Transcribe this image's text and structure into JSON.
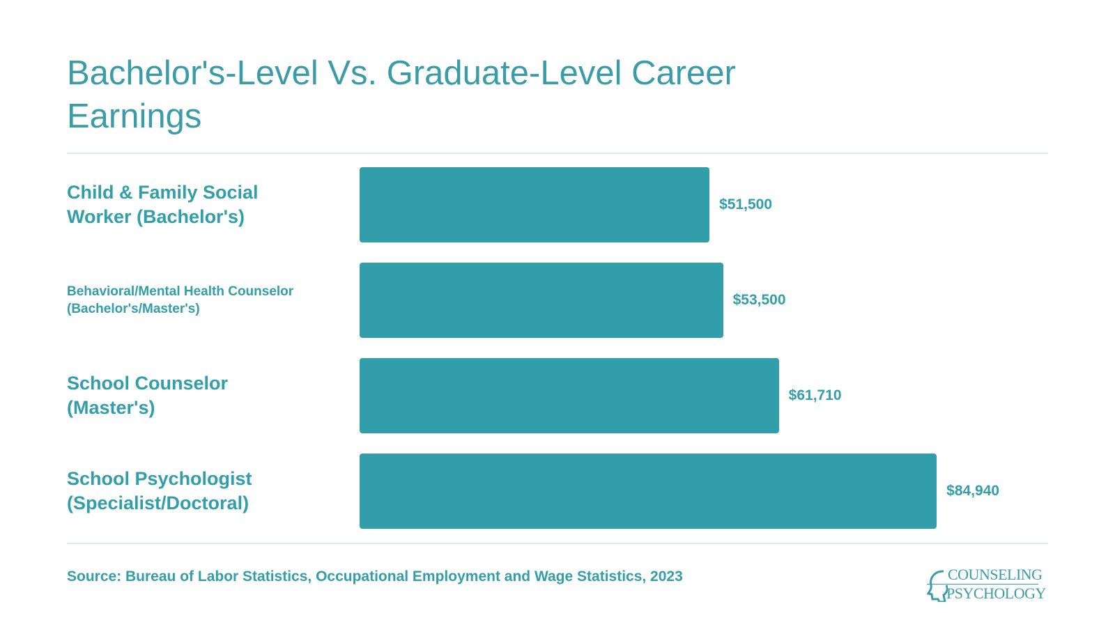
{
  "chart_data": {
    "type": "hbar",
    "title": "Bachelor's-Level Vs. Graduate-Level Career Earnings",
    "categories": [
      "Child & Family Social Worker (Bachelor's)",
      "Behavioral/Mental Health Counselor (Bachelor's/Master's)",
      "School Counselor (Master's)",
      "School Psychologist (Specialist/Doctoral)"
    ],
    "values": [
      51500,
      53500,
      61710,
      84940
    ],
    "value_labels": [
      "$51,500",
      "$53,500",
      "$61,710",
      "$84,940"
    ],
    "color": "#329ea9",
    "source": "Source: Bureau of Labor Statistics, Occupational Employment and Wage Statistics, 2023",
    "logo": [
      "COUNSELING",
      "PSYCHOLOGY"
    ]
  }
}
